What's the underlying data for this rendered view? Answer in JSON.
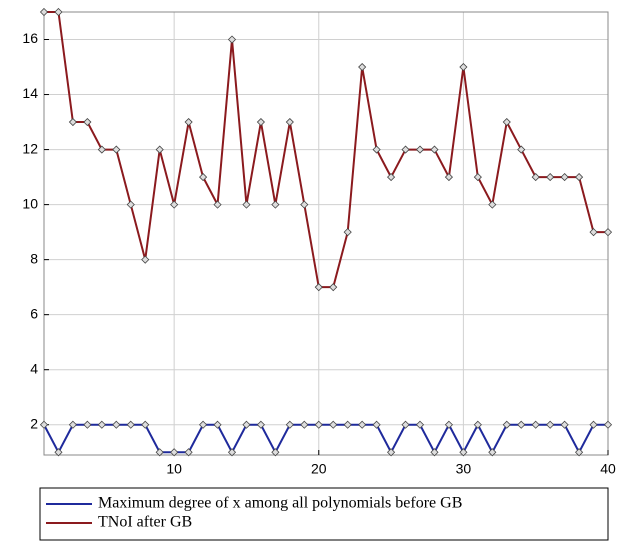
{
  "chart_data": {
    "type": "line",
    "x": [
      1,
      2,
      3,
      4,
      5,
      6,
      7,
      8,
      9,
      10,
      11,
      12,
      13,
      14,
      15,
      16,
      17,
      18,
      19,
      20,
      21,
      22,
      23,
      24,
      25,
      26,
      27,
      28,
      29,
      30,
      31,
      32,
      33,
      34,
      35,
      36,
      37,
      38,
      39,
      40
    ],
    "series": [
      {
        "name": "Maximum degree of x among all polynomials before GB",
        "color": "#1f2a9c",
        "values": [
          2,
          1,
          2,
          2,
          2,
          2,
          2,
          2,
          1,
          1,
          1,
          2,
          2,
          1,
          2,
          2,
          1,
          2,
          2,
          2,
          2,
          2,
          2,
          2,
          1,
          2,
          2,
          1,
          2,
          1,
          2,
          1,
          2,
          2,
          2,
          2,
          2,
          1,
          2,
          2
        ]
      },
      {
        "name": "TNoI after GB",
        "color": "#8b1a1e",
        "values": [
          17,
          17,
          13,
          13,
          12,
          12,
          10,
          8,
          12,
          10,
          13,
          11,
          10,
          16,
          10,
          13,
          10,
          13,
          10,
          7,
          7,
          9,
          15,
          12,
          11,
          12,
          12,
          12,
          11,
          15,
          11,
          10,
          13,
          12,
          11,
          11,
          11,
          11,
          9,
          9
        ]
      }
    ],
    "xlim": [
      1,
      40
    ],
    "xticks": [
      10,
      20,
      30,
      40
    ],
    "ylim": [
      0.9,
      17
    ],
    "yticks": [
      2,
      4,
      6,
      8,
      10,
      12,
      14,
      16
    ],
    "grid": true,
    "legend": "bottom"
  }
}
